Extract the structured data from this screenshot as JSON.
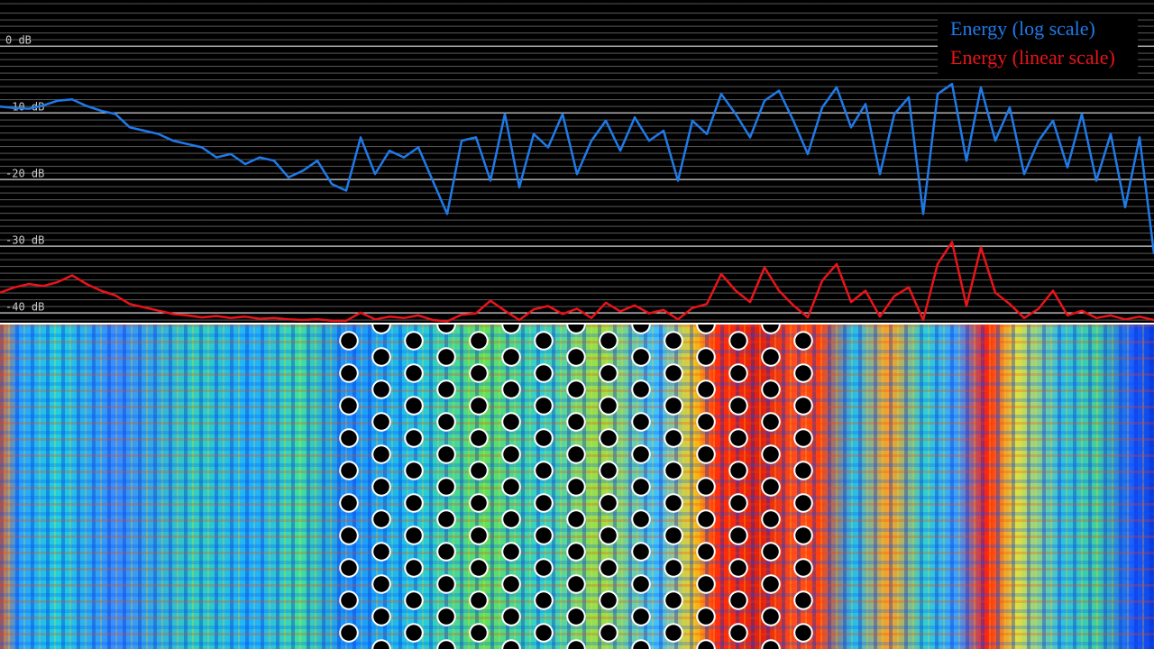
{
  "chart_data": {
    "type": "line",
    "ylim": [
      -42.3,
      6.1
    ],
    "yticks": [
      {
        "value": 0,
        "label": "0 dB"
      },
      {
        "value": -10,
        "label": "-10 dB"
      },
      {
        "value": -20,
        "label": "-20 dB"
      },
      {
        "value": -30,
        "label": "-30 dB"
      },
      {
        "value": -40,
        "label": "-40 dB"
      }
    ],
    "grid": true,
    "legend": "upper right",
    "series": [
      {
        "name": "Energy (log scale)",
        "color": "#1f7ae8",
        "values": [
          -9.9,
          -10.1,
          -10.2,
          -9.7,
          -9.0,
          -8.8,
          -9.8,
          -10.5,
          -11,
          -13,
          -13.5,
          -14,
          -15,
          -15.5,
          -16,
          -17.5,
          -17,
          -18.5,
          -17.5,
          -18,
          -20.5,
          -19.5,
          -18,
          -21.5,
          -22.5,
          -14.5,
          -20,
          -16.5,
          -17.5,
          -16,
          -21,
          -26,
          -15,
          -14.5,
          -21,
          -11,
          -22,
          -14,
          -16,
          -11,
          -20,
          -15,
          -12,
          -16.5,
          -11.5,
          -15,
          -13.5,
          -21,
          -12,
          -14,
          -8,
          -11,
          -14.5,
          -9,
          -7.5,
          -12,
          -17,
          -10,
          -7,
          -13,
          -9.5,
          -20,
          -11,
          -8.5,
          -26,
          -8,
          -6.5,
          -18,
          -7,
          -15,
          -10,
          -20,
          -15,
          -12,
          -19,
          -11,
          -21,
          -14,
          -25,
          -14.5,
          -32
        ]
      },
      {
        "name": "Energy (linear scale)",
        "color": "#e8141a",
        "values": [
          -37.8,
          -37,
          -36.5,
          -36.8,
          -36.2,
          -35.2,
          -36.5,
          -37.5,
          -38.2,
          -39.5,
          -40,
          -40.5,
          -41,
          -41.2,
          -41.5,
          -41.3,
          -41.6,
          -41.4,
          -41.7,
          -41.6,
          -41.8,
          -41.9,
          -41.8,
          -42,
          -42,
          -40.8,
          -41.8,
          -41.4,
          -41.6,
          -41.2,
          -41.9,
          -42.1,
          -41.1,
          -40.9,
          -39,
          -40.5,
          -41.9,
          -40.3,
          -39.8,
          -41,
          -40.2,
          -41.6,
          -39.3,
          -40.6,
          -39.7,
          -40.9,
          -40.4,
          -41.8,
          -40.1,
          -39.5,
          -35,
          -37.5,
          -39.2,
          -34,
          -37.5,
          -39.7,
          -41.5,
          -36,
          -33.5,
          -39.2,
          -37.5,
          -41.4,
          -38.3,
          -37,
          -41.9,
          -33.5,
          -30.2,
          -39.8,
          -31,
          -37.8,
          -39.5,
          -41.6,
          -40.2,
          -37.5,
          -41.2,
          -40.5,
          -41.6,
          -41.2,
          -41.8,
          -41.4,
          -41.9
        ]
      }
    ]
  }
}
